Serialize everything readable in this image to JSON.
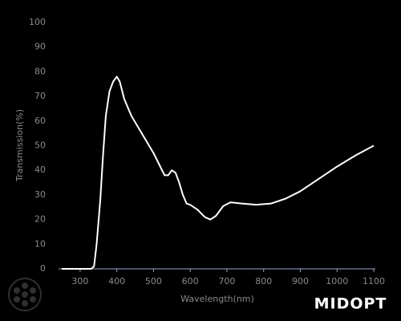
{
  "chart_data": {
    "type": "line",
    "x_label": "Wavelength(nm)",
    "y_label": "Transmission(%)",
    "x": [
      250,
      300,
      330,
      338,
      345,
      355,
      362,
      370,
      380,
      390,
      400,
      408,
      415,
      420,
      440,
      460,
      480,
      500,
      520,
      530,
      540,
      550,
      560,
      570,
      580,
      590,
      600,
      620,
      640,
      655,
      670,
      690,
      710,
      740,
      780,
      820,
      860,
      900,
      950,
      1000,
      1050,
      1100
    ],
    "series": [
      {
        "name": "Transmission",
        "color": "#ffffff",
        "values": [
          0,
          0,
          0,
          1,
          10,
          28,
          45,
          62,
          72,
          76,
          78,
          76,
          72,
          69,
          62,
          57,
          52,
          47,
          41,
          38,
          38,
          40,
          39,
          35,
          30,
          26.5,
          26,
          24,
          21,
          20,
          21.5,
          25.5,
          27,
          26.5,
          26,
          26.5,
          28.5,
          31.5,
          36.5,
          41.5,
          46,
          50
        ]
      }
    ],
    "xlim": [
      250,
      1100
    ],
    "ylim": [
      0,
      100
    ],
    "xticks": [
      300,
      400,
      500,
      600,
      700,
      800,
      900,
      1000,
      1100
    ],
    "yticks": [
      0,
      10,
      20,
      30,
      40,
      50,
      60,
      70,
      80,
      90,
      100
    ],
    "grid": false
  },
  "logo": "MIDOPT"
}
